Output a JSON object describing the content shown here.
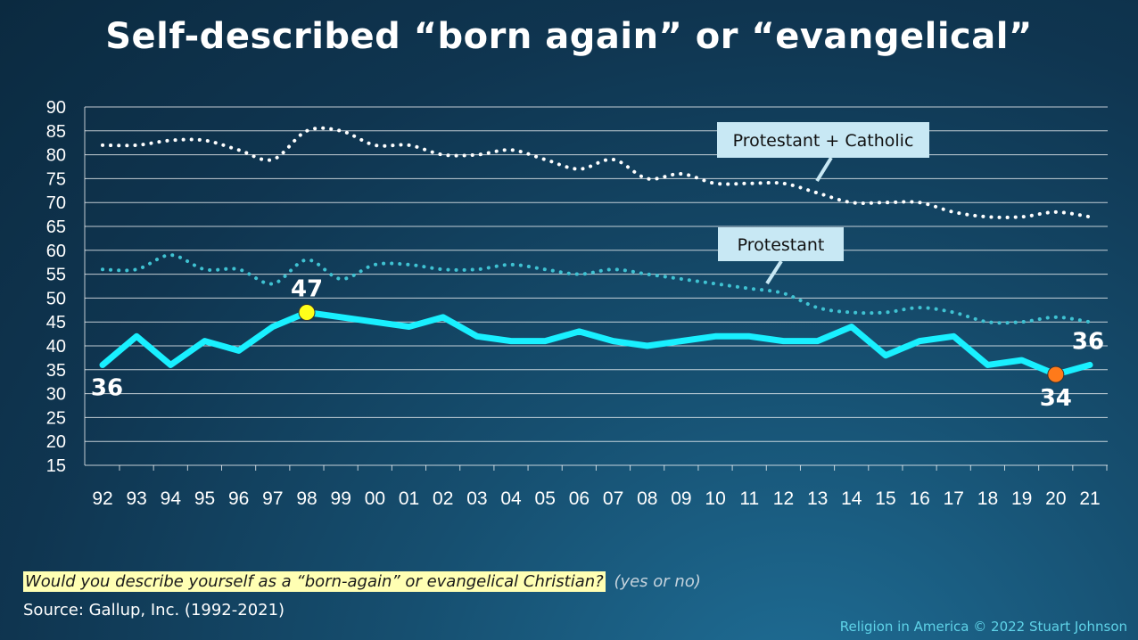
{
  "title": "Self-described “born again” or “evangelical”",
  "question": {
    "text": "Would you describe yourself as a “born-again” or evangelical Christian?",
    "answers": "(yes or no)"
  },
  "source": "Source: Gallup, Inc. (1992-2021)",
  "credit": "Religion in America © 2022 Stuart Johnson",
  "colors": {
    "background": "#0f3550",
    "main_line": "#19f0ff",
    "dotted_lines_protcath": "#ffffff",
    "dotted_lines_prot": "#3fc2d2",
    "highlight_high": "#ffff1a",
    "highlight_low": "#ff7a1a",
    "callout_box": "#c8e8f4"
  },
  "chart_data": {
    "type": "line",
    "x": [
      "92",
      "93",
      "94",
      "95",
      "96",
      "97",
      "98",
      "99",
      "00",
      "01",
      "02",
      "03",
      "04",
      "05",
      "06",
      "07",
      "08",
      "09",
      "10",
      "11",
      "12",
      "13",
      "14",
      "15",
      "16",
      "17",
      "18",
      "19",
      "20",
      "21"
    ],
    "ylim": [
      15,
      90
    ],
    "yticks": [
      15,
      20,
      25,
      30,
      35,
      40,
      45,
      50,
      55,
      60,
      65,
      70,
      75,
      80,
      85,
      90
    ],
    "grid": true,
    "series": [
      {
        "name": "Protestant + Catholic",
        "style": "dotted",
        "values": [
          82,
          82,
          83,
          83,
          81,
          79,
          85,
          85,
          82,
          82,
          80,
          80,
          81,
          79,
          77,
          79,
          75,
          76,
          74,
          74,
          74,
          72,
          70,
          70,
          70,
          68,
          67,
          67,
          68,
          67
        ]
      },
      {
        "name": "Protestant",
        "style": "dotted",
        "values": [
          56,
          56,
          59,
          56,
          56,
          53,
          58,
          54,
          57,
          57,
          56,
          56,
          57,
          56,
          55,
          56,
          55,
          54,
          53,
          52,
          51,
          48,
          47,
          47,
          48,
          47,
          45,
          45,
          46,
          45
        ]
      },
      {
        "name": "",
        "style": "solid",
        "values": [
          36,
          42,
          36,
          41,
          39,
          44,
          47,
          46,
          45,
          44,
          46,
          42,
          41,
          41,
          43,
          41,
          40,
          41,
          42,
          42,
          41,
          41,
          44,
          38,
          41,
          42,
          36,
          37,
          34,
          36
        ]
      }
    ],
    "annotations": [
      {
        "label": "36",
        "x": "92",
        "y": 36
      },
      {
        "label": "47",
        "x": "98",
        "y": 47,
        "marker": "high"
      },
      {
        "label": "34",
        "x": "20",
        "y": 34,
        "marker": "low"
      },
      {
        "label": "36",
        "x": "21",
        "y": 36
      }
    ],
    "callouts": [
      {
        "text": "Protestant + Catholic",
        "series": "Protestant + Catholic"
      },
      {
        "text": "Protestant",
        "series": "Protestant"
      }
    ]
  }
}
